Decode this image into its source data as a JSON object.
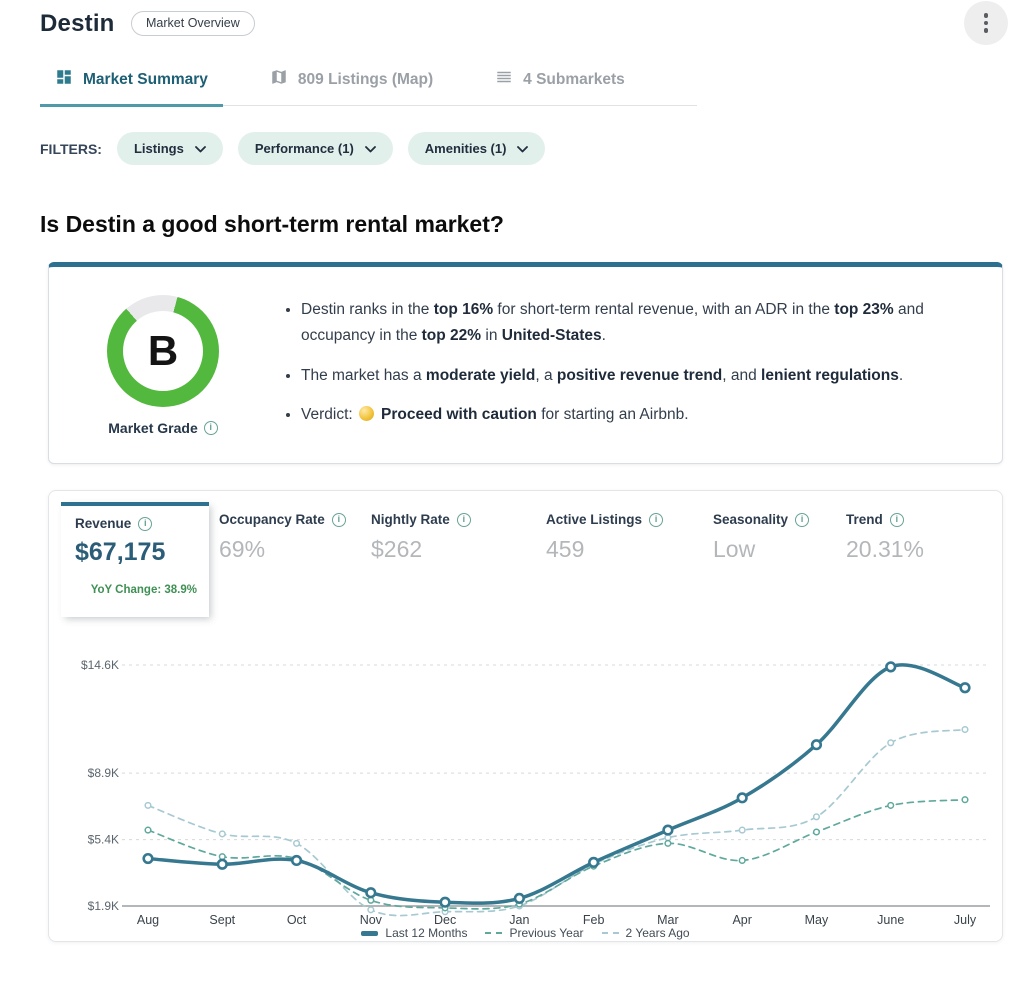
{
  "colors": {
    "accent_teal": "#2e7b8d",
    "tab_underline": "#4f9aa8",
    "grade_green": "#53b83e",
    "yoy_green": "#3f9054",
    "selected_value": "#2b5d78",
    "muted_value": "#b4b7ba"
  },
  "header": {
    "title": "Destin",
    "badge": "Market Overview"
  },
  "tabs": {
    "items": [
      {
        "label": "Market Summary",
        "icon": "dashboard-icon",
        "active": true
      },
      {
        "label": "809 Listings (Map)",
        "icon": "map-icon",
        "active": false
      },
      {
        "label": "4 Submarkets",
        "icon": "list-icon",
        "active": false
      }
    ]
  },
  "filters": {
    "label": "FILTERS:",
    "chips": [
      {
        "label": "Listings"
      },
      {
        "label": "Performance (1)"
      },
      {
        "label": "Amenities (1)"
      }
    ]
  },
  "question": {
    "heading": "Is Destin a good short-term rental market?"
  },
  "grade_card": {
    "grade": "B",
    "label": "Market Grade",
    "bullets": [
      {
        "segments": [
          {
            "text": "Destin ranks in the "
          },
          {
            "text": "top 16%",
            "bold": true
          },
          {
            "text": " for short-term rental revenue, with an ADR in the "
          },
          {
            "text": "top 23%",
            "bold": true
          },
          {
            "text": " and occupancy in the "
          },
          {
            "text": "top 22%",
            "bold": true
          },
          {
            "text": " in "
          },
          {
            "text": "United-States",
            "bold": true
          },
          {
            "text": "."
          }
        ]
      },
      {
        "segments": [
          {
            "text": "The market has a "
          },
          {
            "text": "moderate yield",
            "bold": true
          },
          {
            "text": ", a "
          },
          {
            "text": "positive revenue trend",
            "bold": true
          },
          {
            "text": ", and "
          },
          {
            "text": "lenient regulations",
            "bold": true
          },
          {
            "text": "."
          }
        ]
      },
      {
        "segments": [
          {
            "text": "Verdict: "
          },
          {
            "emoji": "caution-circle"
          },
          {
            "text": "Proceed with caution",
            "bold": true
          },
          {
            "text": " for starting an Airbnb."
          }
        ]
      }
    ]
  },
  "stats": {
    "revenue": {
      "label": "Revenue",
      "value": "$67,175",
      "yoy": "YoY Change: 38.9%"
    },
    "items": [
      {
        "label": "Occupancy Rate",
        "value": "69%"
      },
      {
        "label": "Nightly Rate",
        "value": "$262"
      },
      {
        "label": "Active Listings",
        "value": "459"
      },
      {
        "label": "Seasonality",
        "value": "Low"
      },
      {
        "label": "Trend",
        "value": "20.31%"
      }
    ]
  },
  "chart_data": {
    "type": "line",
    "unit": "USD (thousands) monthly revenue",
    "categories": [
      "Aug",
      "Sept",
      "Oct",
      "Nov",
      "Dec",
      "Jan",
      "Feb",
      "Mar",
      "Apr",
      "May",
      "June",
      "July"
    ],
    "y_ticks": [
      {
        "label": "$14.6K",
        "value": 14.6
      },
      {
        "label": "$8.9K",
        "value": 8.9
      },
      {
        "label": "$5.4K",
        "value": 5.4
      },
      {
        "label": "$1.9K",
        "value": 1.9
      }
    ],
    "ylim": [
      1.9,
      14.6
    ],
    "grid": true,
    "legend_position": "bottom",
    "series": [
      {
        "name": "Last 12 Months",
        "style": "solid",
        "color": "#36788f",
        "values": [
          4.4,
          4.1,
          4.3,
          2.6,
          2.1,
          2.3,
          4.2,
          5.9,
          7.6,
          10.4,
          14.5,
          13.4
        ]
      },
      {
        "name": "Previous Year",
        "style": "dashed",
        "color": "#5fa89c",
        "values": [
          5.9,
          4.5,
          4.4,
          2.2,
          1.8,
          2.0,
          4.0,
          5.2,
          4.3,
          5.8,
          7.2,
          7.5
        ]
      },
      {
        "name": "2 Years Ago",
        "style": "dashed",
        "color": "#a7c9d2",
        "values": [
          7.2,
          5.7,
          5.2,
          1.7,
          1.6,
          1.9,
          4.1,
          5.5,
          5.9,
          6.6,
          10.5,
          11.2
        ]
      }
    ]
  }
}
